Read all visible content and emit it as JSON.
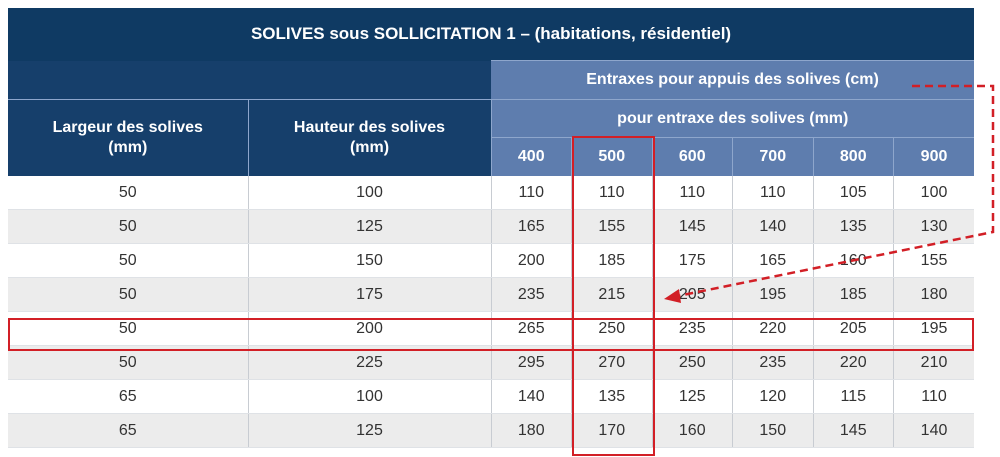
{
  "title": "SOLIVES sous SOLLICITATION 1 – (habitations, résidentiel)",
  "header": {
    "entraxes_appuis": "Entraxes pour appuis des solives (cm)",
    "largeur": "Largeur des solives\n(mm)",
    "hauteur": "Hauteur des solives\n(mm)",
    "pour_entraxe": "pour entraxe des solives (mm)",
    "entraxes": [
      "400",
      "500",
      "600",
      "700",
      "800",
      "900"
    ]
  },
  "rows": [
    [
      "50",
      "100",
      "110",
      "110",
      "110",
      "110",
      "105",
      "100"
    ],
    [
      "50",
      "125",
      "165",
      "155",
      "145",
      "140",
      "135",
      "130"
    ],
    [
      "50",
      "150",
      "200",
      "185",
      "175",
      "165",
      "160",
      "155"
    ],
    [
      "50",
      "175",
      "235",
      "215",
      "205",
      "195",
      "185",
      "180"
    ],
    [
      "50",
      "200",
      "265",
      "250",
      "235",
      "220",
      "205",
      "195"
    ],
    [
      "50",
      "225",
      "295",
      "270",
      "250",
      "235",
      "220",
      "210"
    ],
    [
      "65",
      "100",
      "140",
      "135",
      "125",
      "120",
      "115",
      "110"
    ],
    [
      "65",
      "125",
      "180",
      "170",
      "160",
      "150",
      "145",
      "140"
    ]
  ],
  "highlight": {
    "row": "50 × 200",
    "column": "500",
    "color": "#d21f26"
  },
  "colors": {
    "title_bg": "#0f3a63",
    "header_light": "#5e7dae",
    "accent": "#d21f26"
  }
}
